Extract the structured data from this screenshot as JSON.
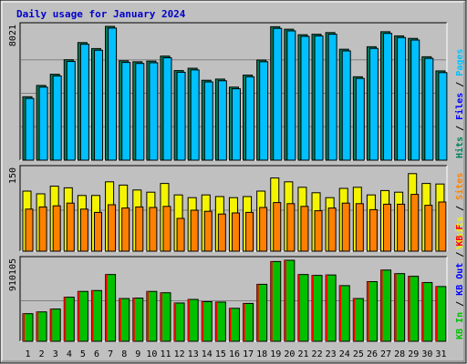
{
  "colors": {
    "frame_bg": "#c0c0c0",
    "hits": "#00805c",
    "files": "#0000ff",
    "pages": "#00c0ff",
    "visits": "#f4f400",
    "sites": "#ff8000",
    "kb_in": "#00c000",
    "kb_out": "#0000ff",
    "kb_f": "#ff0000",
    "weekend_day": "#00805c",
    "title": "#0000cc"
  },
  "chart_data": {
    "type": "bar",
    "title": "Daily usage for January 2024",
    "days": [
      "1",
      "2",
      "3",
      "4",
      "5",
      "6",
      "7",
      "8",
      "9",
      "10",
      "11",
      "12",
      "13",
      "14",
      "15",
      "16",
      "17",
      "18",
      "19",
      "20",
      "21",
      "22",
      "23",
      "24",
      "25",
      "26",
      "27",
      "28",
      "29",
      "30",
      "31"
    ],
    "weekend_days": [
      "6",
      "7",
      "13",
      "14",
      "20",
      "21",
      "27",
      "28"
    ],
    "panels": [
      {
        "name": "hits",
        "ymax_label": "8021",
        "ymax": 8021,
        "right_labels": [
          {
            "text": "Hits",
            "color_key": "hits"
          },
          {
            "text": "Files",
            "color_key": "files"
          },
          {
            "text": "Pages",
            "color_key": "pages"
          }
        ],
        "separator": " / ",
        "series": [
          {
            "name": "Hits",
            "values": [
              3800,
              4480,
              5150,
              6020,
              7050,
              6690,
              8021,
              5960,
              5900,
              5940,
              6240,
              5370,
              5510,
              4790,
              4860,
              4380,
              5100,
              6000,
              8000,
              7850,
              7520,
              7550,
              7650,
              6650,
              5000,
              6800,
              7700,
              7450,
              7300,
              6200,
              5350
            ]
          },
          {
            "name": "Files",
            "values": [
              3700,
              4380,
              5050,
              5920,
              6950,
              6590,
              7920,
              5860,
              5800,
              5840,
              6140,
              5270,
              5410,
              4690,
              4760,
              4280,
              5000,
              5900,
              7900,
              7750,
              7420,
              7450,
              7550,
              6550,
              4900,
              6700,
              7600,
              7350,
              7200,
              6100,
              5250
            ]
          }
        ]
      },
      {
        "name": "visits",
        "ymax_label": "150",
        "ymax": 150,
        "right_labels": [
          {
            "text": "Visits",
            "color_key": "visits"
          },
          {
            "text": "Sites",
            "color_key": "sites"
          }
        ],
        "separator": " / ",
        "series": [
          {
            "name": "Visits",
            "values": [
              110,
              105,
              119,
              116,
              102,
              102,
              127,
              121,
              112,
              108,
              124,
              103,
              98,
              103,
              100,
              98,
              100,
              110,
              134,
              127,
              117,
              107,
              98,
              115,
              117,
              103,
              111,
              108,
              142,
              124,
              123
            ]
          },
          {
            "name": "Sites",
            "values": [
              77,
              81,
              83,
              88,
              77,
              71,
              85,
              79,
              81,
              80,
              82,
              60,
              75,
              73,
              68,
              70,
              71,
              80,
              89,
              87,
              82,
              74,
              79,
              88,
              87,
              76,
              86,
              86,
              104,
              84,
              90
            ]
          }
        ]
      },
      {
        "name": "kbytes",
        "ymax_label": "910105",
        "ymax": 910105,
        "right_labels": [
          {
            "text": "KB In",
            "color_key": "kb_in"
          },
          {
            "text": "KB Out",
            "color_key": "kb_out"
          },
          {
            "text": "KB F",
            "color_key": "kb_f"
          }
        ],
        "separator": " / ",
        "series": [
          {
            "name": "KB In",
            "values": [
              310000,
              330000,
              362000,
              495000,
              560000,
              570000,
              750000,
              480000,
              485000,
              560000,
              545000,
              430000,
              470000,
              445000,
              440000,
              370000,
              425000,
              640000,
              896000,
              910105,
              750000,
              740000,
              745000,
              625000,
              480000,
              670000,
              800000,
              760000,
              730000,
              660000,
              615000
            ]
          }
        ]
      }
    ]
  }
}
